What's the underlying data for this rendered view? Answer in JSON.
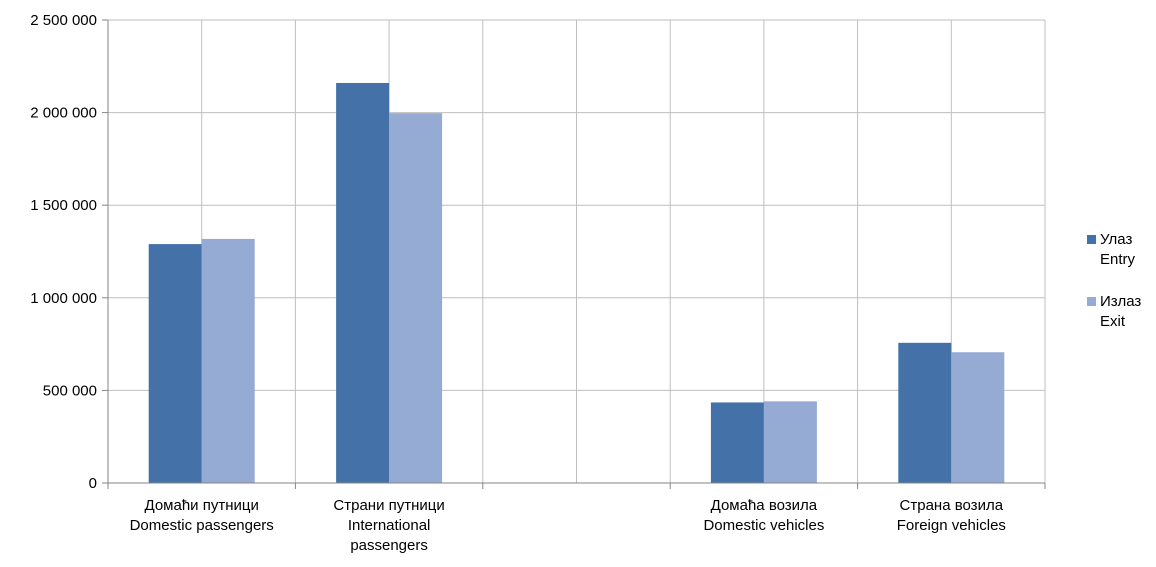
{
  "chart_data": {
    "type": "bar",
    "categories": [
      [
        "Домаћи путници",
        "Domestic passengers"
      ],
      [
        "Страни путници",
        "International",
        "passengers"
      ],
      [
        ""
      ],
      [
        "Домаћа возила",
        "Domestic vehicles"
      ],
      [
        "Страна возила",
        "Foreign vehicles"
      ]
    ],
    "series": [
      {
        "name": [
          "Улаз",
          "Entry"
        ],
        "color": "#4472a8",
        "values": [
          1290000,
          2160000,
          null,
          435000,
          757000
        ]
      },
      {
        "name": [
          "Излаз",
          "Exit"
        ],
        "color": "#95abd3",
        "values": [
          1318000,
          1997000,
          null,
          441000,
          706000
        ]
      }
    ],
    "yticks": [
      "0",
      "500 000",
      "1 000 000",
      "1 500 000",
      "2 000 000",
      "2 500 000"
    ],
    "ylim": [
      0,
      2500000
    ],
    "grid": true,
    "legend": "right"
  }
}
